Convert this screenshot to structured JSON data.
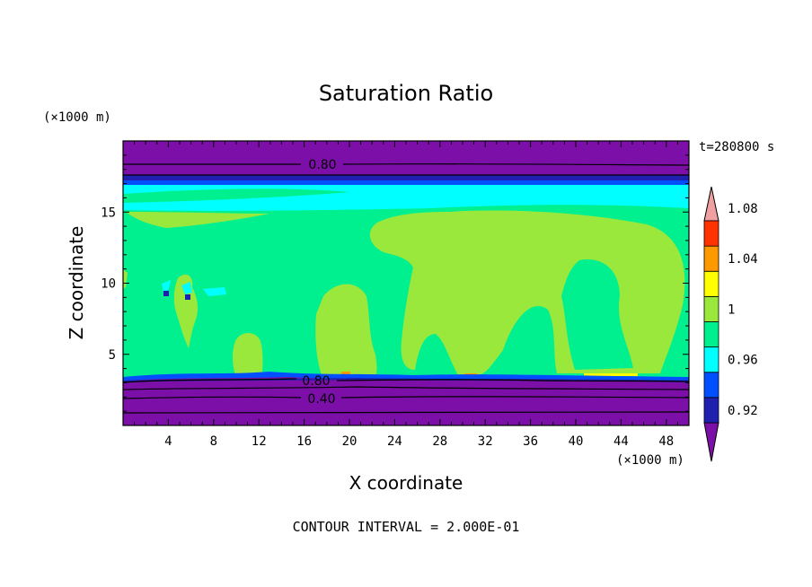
{
  "chart_data": {
    "type": "heatmap",
    "title": "Saturation Ratio",
    "xlabel": "X coordinate",
    "ylabel": "Z coordinate",
    "x_unit": "(×1000 m)",
    "y_unit": "(×1000 m)",
    "time_label": "t=280800 s",
    "footer": "CONTOUR INTERVAL = 2.000E-01",
    "xlim": [
      0,
      50
    ],
    "ylim": [
      0,
      20
    ],
    "x_ticks": [
      "4",
      "8",
      "12",
      "16",
      "20",
      "24",
      "28",
      "32",
      "36",
      "40",
      "44",
      "48"
    ],
    "y_ticks": [
      "5",
      "10",
      "15"
    ],
    "contour_labels": [
      "0.80",
      "0.80",
      "0.40"
    ],
    "colorbar": {
      "tick_labels": [
        "1.08",
        "1.04",
        "1",
        "0.96",
        "0.92"
      ],
      "levels": [
        0.92,
        0.94,
        0.96,
        0.98,
        1.0,
        1.02,
        1.04,
        1.06,
        1.08,
        1.1
      ],
      "colors": [
        "#7c0fa8",
        "#2020b0",
        "#0050ff",
        "#00ffff",
        "#00f090",
        "#9be83c",
        "#ffff00",
        "#ff9900",
        "#ff3300",
        "#f0a0a0"
      ]
    },
    "grid": false
  }
}
